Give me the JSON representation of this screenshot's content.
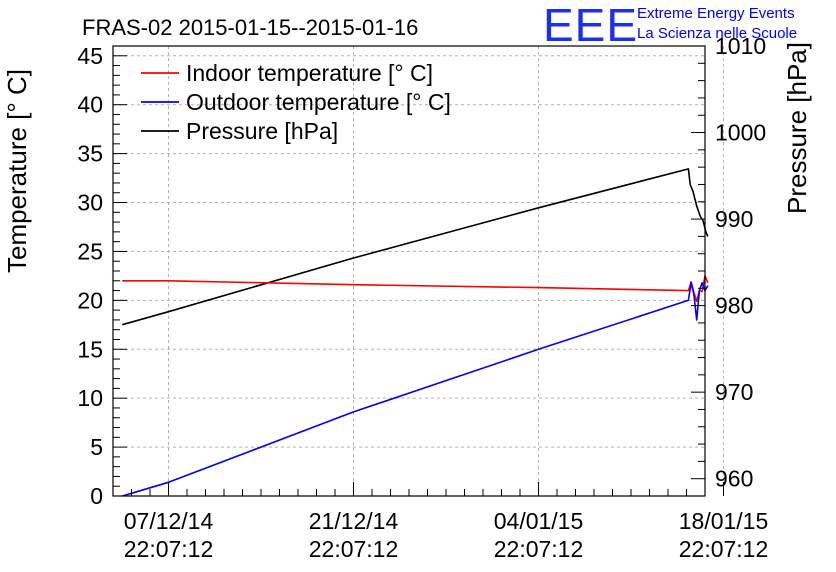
{
  "logo": {
    "mark": "EEE",
    "line1": "Extreme Energy Events",
    "line2": "La Scienza nelle Scuole"
  },
  "chart_data": {
    "type": "line",
    "title": "FRAS-02 2015-01-15--2015-01-16",
    "xlabel": "",
    "ylabel": "Temperature [° C]",
    "y2label": "Pressure [hPa]",
    "ylim": [
      0,
      46
    ],
    "y2lim": [
      958,
      1010
    ],
    "yticks": [
      0,
      5,
      10,
      15,
      20,
      25,
      30,
      35,
      40,
      45
    ],
    "y2ticks": [
      960,
      970,
      980,
      990,
      1000,
      1010
    ],
    "xlim": [
      -3,
      29
    ],
    "xticks": [
      {
        "x": 0,
        "date": "07/12/14",
        "time": "22:07:12"
      },
      {
        "x": 10,
        "date": "21/12/14",
        "time": "22:07:12"
      },
      {
        "x": 20,
        "date": "04/01/15",
        "time": "22:07:12"
      },
      {
        "x": 30,
        "date": "18/01/15",
        "time": "22:07:12"
      }
    ],
    "grid": true,
    "legend_position": "top-left",
    "colors": {
      "indoor": "#ff0000",
      "outdoor": "#0000ff",
      "pressure": "#000000"
    },
    "series": [
      {
        "name": "Indoor temperature [° C]",
        "axis": "left",
        "color": "#ff0000",
        "x": [
          -2.5,
          0,
          10,
          20,
          28.1,
          28.25,
          28.4,
          28.55,
          28.7,
          28.85,
          29.0,
          29.15
        ],
        "y": [
          22.0,
          22.0,
          21.6,
          21.3,
          21.0,
          21.9,
          20.8,
          19.9,
          21.0,
          20.9,
          22.5,
          21.8
        ]
      },
      {
        "name": "Outdoor temperature [° C]",
        "axis": "left",
        "color": "#0000ff",
        "x": [
          -2.5,
          0,
          10,
          20,
          28.1,
          28.25,
          28.4,
          28.55,
          28.7,
          28.85,
          29.0,
          29.15
        ],
        "y": [
          0.0,
          1.4,
          8.6,
          15.0,
          20.0,
          21.8,
          20.6,
          18.0,
          21.0,
          21.8,
          21.0,
          21.5
        ]
      },
      {
        "name": "Pressure [hPa]",
        "axis": "right",
        "color": "#000000",
        "x": [
          -2.5,
          0,
          10,
          20,
          28.1,
          28.2,
          28.35,
          28.55,
          28.75,
          28.9,
          29.05,
          29.15
        ],
        "y": [
          977.8,
          979.3,
          985.5,
          991.3,
          995.8,
          994.0,
          993.2,
          991.5,
          990.3,
          989.8,
          988.5,
          988.0
        ]
      }
    ]
  }
}
